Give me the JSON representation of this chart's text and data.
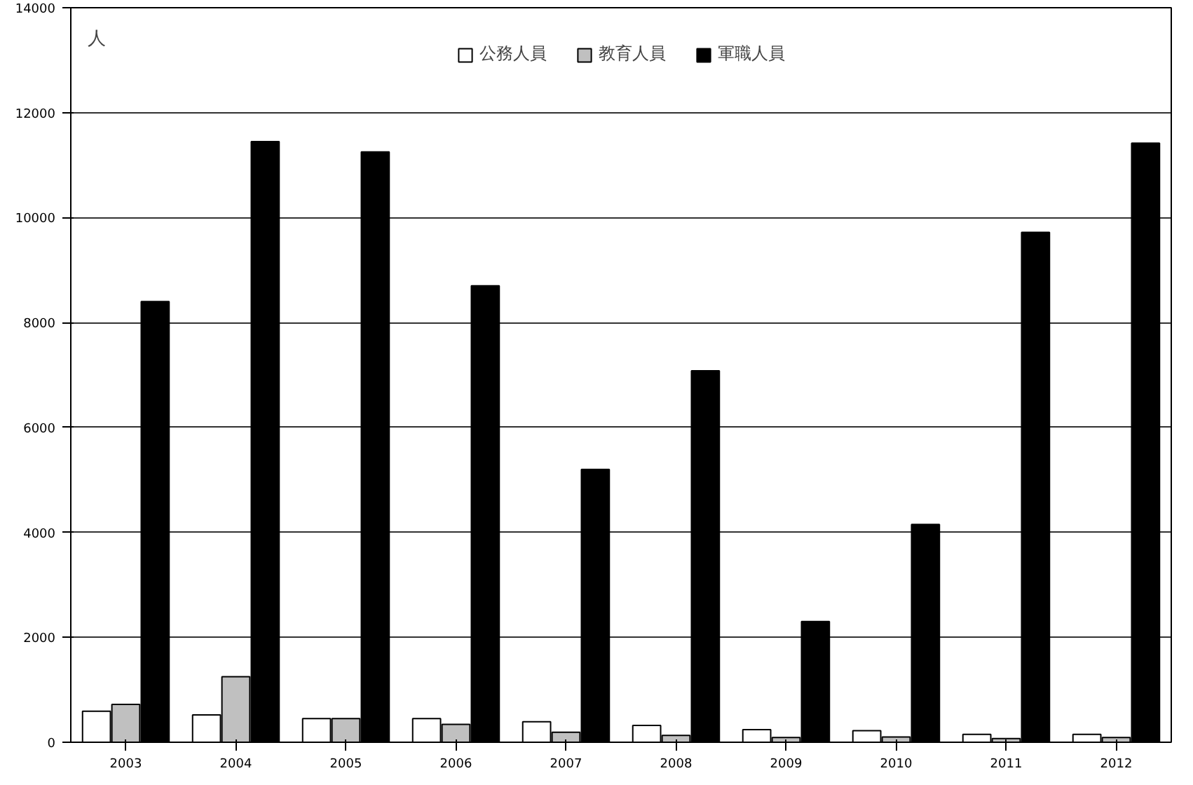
{
  "chart_data": {
    "type": "bar",
    "ylabel": "人",
    "categories": [
      "2003",
      "2004",
      "2005",
      "2006",
      "2007",
      "2008",
      "2009",
      "2010",
      "2011",
      "2012"
    ],
    "series": [
      {
        "name": "公務人員",
        "color": "#ffffff",
        "values": [
          590,
          520,
          450,
          450,
          390,
          320,
          240,
          220,
          150,
          150
        ]
      },
      {
        "name": "教育人員",
        "color": "#c0c0c0",
        "values": [
          720,
          1250,
          450,
          340,
          190,
          130,
          90,
          100,
          70,
          90
        ]
      },
      {
        "name": "軍職人員",
        "color": "#000000",
        "values": [
          8400,
          11450,
          11250,
          8700,
          5200,
          7080,
          2300,
          4150,
          9720,
          11420
        ]
      }
    ],
    "ylim": [
      0,
      14000
    ],
    "yticks": [
      0,
      2000,
      4000,
      6000,
      8000,
      10000,
      12000,
      14000
    ],
    "grid": "y",
    "legend": "top"
  }
}
